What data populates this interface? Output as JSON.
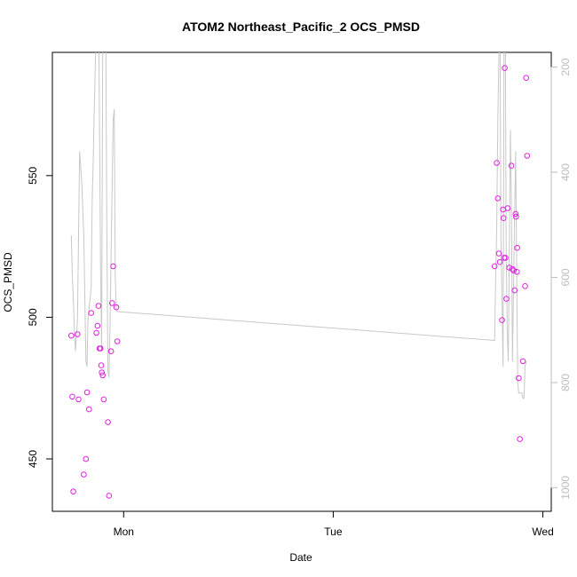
{
  "chart_data": {
    "type": "scatter",
    "title": "ATOM2 Northeast_Pacific_2 OCS_PMSD",
    "xlabel": "Date",
    "ylabel": "OCS_PMSD",
    "x_ticks": [
      {
        "x": 0.0,
        "label": "Mon"
      },
      {
        "x": 1.0,
        "label": "Tue"
      },
      {
        "x": 2.0,
        "label": "Wed"
      }
    ],
    "y_ticks": [
      450,
      500,
      550
    ],
    "right_axis": {
      "color": "#bdbdbd",
      "reversed": true,
      "range": [
        1045,
        172
      ],
      "ticks": [
        200,
        400,
        600,
        800,
        1000
      ]
    },
    "xlim": [
      -0.34,
      2.04
    ],
    "ylim": [
      431.5,
      593.5
    ],
    "grid": false,
    "legend": "none",
    "series": [
      {
        "kind": "points",
        "color": "#e020e0",
        "points": [
          [
            -0.25,
            493.5
          ],
          [
            -0.245,
            472.0
          ],
          [
            -0.24,
            438.5
          ],
          [
            -0.22,
            494.0
          ],
          [
            -0.215,
            471.0
          ],
          [
            -0.19,
            444.5
          ],
          [
            -0.18,
            450.0
          ],
          [
            -0.175,
            473.5
          ],
          [
            -0.165,
            467.5
          ],
          [
            -0.155,
            501.5
          ],
          [
            -0.13,
            494.5
          ],
          [
            -0.125,
            497.0
          ],
          [
            -0.12,
            504.0
          ],
          [
            -0.115,
            489.0
          ],
          [
            -0.11,
            489.0
          ],
          [
            -0.107,
            483.0
          ],
          [
            -0.104,
            480.5
          ],
          [
            -0.1,
            479.5
          ],
          [
            -0.095,
            471.0
          ],
          [
            -0.075,
            463.0
          ],
          [
            -0.07,
            437.0
          ],
          [
            -0.06,
            488.0
          ],
          [
            -0.055,
            505.0
          ],
          [
            -0.05,
            518.0
          ],
          [
            -0.035,
            503.5
          ],
          [
            -0.03,
            491.5
          ],
          [
            1.77,
            518.0
          ],
          [
            1.78,
            554.5
          ],
          [
            1.785,
            542.0
          ],
          [
            1.79,
            522.5
          ],
          [
            1.795,
            519.5
          ],
          [
            1.805,
            499.0
          ],
          [
            1.81,
            538.0
          ],
          [
            1.812,
            535.0
          ],
          [
            1.815,
            521.0
          ],
          [
            1.818,
            588.0
          ],
          [
            1.822,
            521.0
          ],
          [
            1.826,
            506.5
          ],
          [
            1.832,
            538.5
          ],
          [
            1.84,
            517.5
          ],
          [
            1.85,
            553.5
          ],
          [
            1.855,
            517.0
          ],
          [
            1.86,
            516.5
          ],
          [
            1.865,
            509.5
          ],
          [
            1.87,
            536.5
          ],
          [
            1.872,
            535.5
          ],
          [
            1.876,
            516.0
          ],
          [
            1.878,
            524.5
          ],
          [
            1.885,
            478.5
          ],
          [
            1.89,
            457.0
          ],
          [
            1.905,
            484.5
          ],
          [
            1.915,
            511.0
          ],
          [
            1.92,
            584.5
          ],
          [
            1.925,
            557.0
          ]
        ]
      },
      {
        "kind": "line",
        "axis": "right",
        "color": "#c8c8c8",
        "points": [
          [
            -0.25,
            520
          ],
          [
            -0.245,
            595
          ],
          [
            -0.24,
            640
          ],
          [
            -0.235,
            700
          ],
          [
            -0.23,
            740
          ],
          [
            -0.22,
            680
          ],
          [
            -0.21,
            360
          ],
          [
            -0.2,
            420
          ],
          [
            -0.19,
            520
          ],
          [
            -0.18,
            760
          ],
          [
            -0.175,
            770
          ],
          [
            -0.17,
            680
          ],
          [
            -0.16,
            640
          ],
          [
            -0.155,
            620
          ],
          [
            -0.15,
            450
          ],
          [
            -0.145,
            380
          ],
          [
            -0.14,
            280
          ],
          [
            -0.13,
            110
          ],
          [
            -0.12,
            50
          ],
          [
            -0.11,
            580
          ],
          [
            -0.105,
            740
          ],
          [
            -0.1,
            160
          ],
          [
            -0.095,
            80
          ],
          [
            -0.09,
            120
          ],
          [
            -0.085,
            160
          ],
          [
            -0.08,
            520
          ],
          [
            -0.075,
            780
          ],
          [
            -0.07,
            790
          ],
          [
            -0.065,
            700
          ],
          [
            -0.06,
            560
          ],
          [
            -0.05,
            300
          ],
          [
            -0.045,
            280
          ],
          [
            -0.04,
            600
          ],
          [
            -0.035,
            660
          ],
          [
            -0.03,
            665
          ],
          [
            1.77,
            720
          ],
          [
            1.775,
            600
          ],
          [
            1.78,
            500
          ],
          [
            1.785,
            300
          ],
          [
            1.79,
            180
          ],
          [
            1.795,
            60
          ],
          [
            1.8,
            520
          ],
          [
            1.805,
            640
          ],
          [
            1.81,
            770
          ],
          [
            1.815,
            100
          ],
          [
            1.82,
            60
          ],
          [
            1.825,
            540
          ],
          [
            1.83,
            700
          ],
          [
            1.835,
            760
          ],
          [
            1.84,
            540
          ],
          [
            1.845,
            320
          ],
          [
            1.85,
            460
          ],
          [
            1.855,
            760
          ],
          [
            1.86,
            620
          ],
          [
            1.865,
            480
          ],
          [
            1.87,
            360
          ],
          [
            1.875,
            580
          ],
          [
            1.88,
            800
          ],
          [
            1.885,
            820
          ],
          [
            1.89,
            820
          ],
          [
            1.9,
            820
          ],
          [
            1.905,
            830
          ],
          [
            1.91,
            830
          ],
          [
            1.915,
            770
          ],
          [
            1.92,
            760
          ]
        ]
      }
    ]
  }
}
